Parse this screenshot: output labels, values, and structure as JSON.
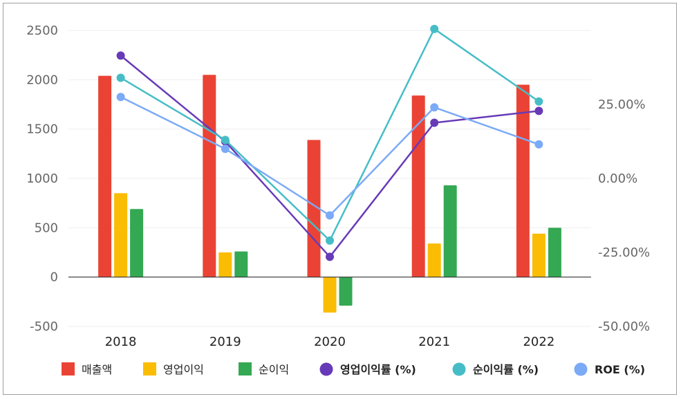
{
  "chart_data": {
    "type": "bar",
    "categories": [
      "2018",
      "2019",
      "2020",
      "2021",
      "2022"
    ],
    "y_left": {
      "ylim": [
        -500,
        2500
      ],
      "ticks": [
        "2500",
        "2000",
        "1500",
        "1000",
        "500",
        "0",
        "-500"
      ],
      "tick_values": [
        2500,
        2000,
        1500,
        1000,
        500,
        0,
        -500
      ]
    },
    "y_right": {
      "ylim": [
        -50,
        50
      ],
      "ticks": [
        "25.00%",
        "0.00%",
        "-25.00%",
        "-50.00%"
      ],
      "tick_values": [
        25,
        0,
        -25,
        -50
      ]
    },
    "bar_series": [
      {
        "name": "매출액",
        "color": "#EA4335",
        "values": [
          2040,
          2050,
          1390,
          1840,
          1950
        ]
      },
      {
        "name": "영업이익",
        "color": "#FBBC04",
        "values": [
          850,
          250,
          -360,
          340,
          440
        ]
      },
      {
        "name": "순이익",
        "color": "#34A853",
        "values": [
          690,
          260,
          -290,
          930,
          500
        ]
      }
    ],
    "line_series": [
      {
        "name": "영업이익률 (%)",
        "color": "#673AB7",
        "values": [
          41.5,
          12.5,
          -26.5,
          18.8,
          22.8
        ]
      },
      {
        "name": "순이익률 (%)",
        "color": "#46BDC6",
        "values": [
          34,
          13,
          -21,
          50.5,
          26
        ]
      },
      {
        "name": "ROE (%)",
        "color": "#7BAAF7",
        "values": [
          27.5,
          10,
          -12.5,
          24,
          11.5
        ]
      }
    ],
    "legend": [
      {
        "label": "매출액",
        "marker": "square",
        "color": "#EA4335"
      },
      {
        "label": "영업이익",
        "marker": "square",
        "color": "#FBBC04"
      },
      {
        "label": "순이익",
        "marker": "square",
        "color": "#34A853"
      },
      {
        "label": "영업이익률 (%)",
        "marker": "circle",
        "color": "#673AB7"
      },
      {
        "label": "순이익률 (%)",
        "marker": "circle",
        "color": "#46BDC6"
      },
      {
        "label": "ROE (%)",
        "marker": "circle",
        "color": "#7BAAF7"
      }
    ],
    "legend_position": "bottom",
    "grid": true
  }
}
